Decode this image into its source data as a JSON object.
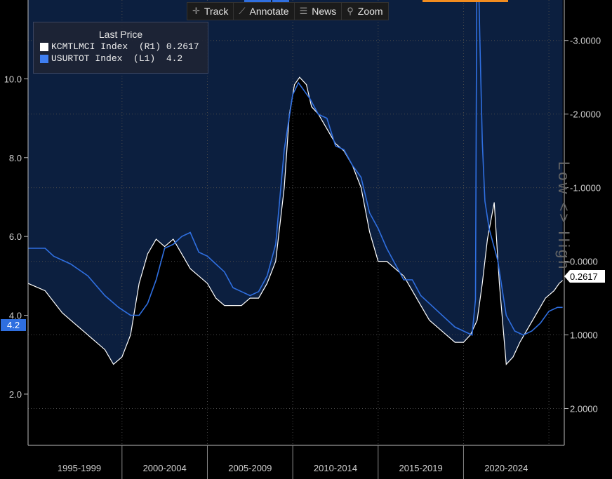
{
  "toolbar": {
    "track": "Track",
    "annotate": "Annotate",
    "news": "News",
    "zoom": "Zoom"
  },
  "legend": {
    "title": "Last Price",
    "items": [
      {
        "label": "KCMTLMCI Index  (R1) 0.2617",
        "color": "#ffffff"
      },
      {
        "label": "USURTOT Index  (L1)  4.2",
        "color": "#3f7ff2"
      }
    ]
  },
  "side_label": "Low <> High",
  "colors": {
    "background": "#000000",
    "shade": "#0c1f3f",
    "usurtot": "#2f6fe0",
    "kcmtlmci": "#ffffff"
  },
  "chart_data": {
    "type": "line",
    "x_tick_labels": [
      "1995-1999",
      "2000-2004",
      "2005-2009",
      "2010-2014",
      "2015-2019",
      "2020-2024"
    ],
    "xlim": [
      1994.0,
      2025.4
    ],
    "left_axis": {
      "ticks": [
        2.0,
        4.0,
        6.0,
        8.0,
        10.0
      ],
      "tick_labels": [
        "2.0",
        "4.0",
        "6.0",
        "8.0",
        "10.0"
      ],
      "ylim": [
        0.7,
        12.0
      ]
    },
    "right_axis": {
      "inverted": true,
      "ticks": [
        -3.0,
        -2.0,
        -1.0,
        0.0,
        1.0,
        2.0
      ],
      "tick_labels": [
        "-3.0000",
        "-2.0000",
        "-1.0000",
        "0.0000",
        "1.0000",
        "2.0000"
      ],
      "ylim": [
        -3.55,
        2.5
      ]
    },
    "last_values": {
      "left": "4.2",
      "right": "0.2617"
    },
    "series": [
      {
        "name": "USURTOT Index",
        "axis": "left",
        "x": [
          1994.0,
          1995.0,
          1995.5,
          1996.5,
          1997.5,
          1998.5,
          1999.3,
          2000.0,
          2000.5,
          2001.0,
          2001.5,
          2002.0,
          2002.5,
          2003.0,
          2003.5,
          2004.0,
          2004.5,
          2005.0,
          2005.5,
          2006.0,
          2006.5,
          2007.0,
          2007.5,
          2008.0,
          2008.5,
          2009.0,
          2009.5,
          2009.83,
          2010.0,
          2010.5,
          2011.0,
          2011.5,
          2012.0,
          2012.5,
          2013.0,
          2013.5,
          2014.0,
          2014.5,
          2015.0,
          2015.5,
          2016.0,
          2016.5,
          2017.0,
          2017.5,
          2018.0,
          2018.5,
          2019.0,
          2019.5,
          2020.0,
          2020.2,
          2020.3,
          2020.35,
          2020.45,
          2020.6,
          2020.75,
          2021.0,
          2021.5,
          2022.0,
          2022.5,
          2023.0,
          2023.5,
          2024.0,
          2024.5,
          2025.0,
          2025.3
        ],
        "y": [
          5.7,
          5.7,
          5.5,
          5.3,
          5.0,
          4.5,
          4.2,
          4.0,
          4.0,
          4.3,
          4.9,
          5.7,
          5.8,
          6.0,
          6.1,
          5.6,
          5.5,
          5.3,
          5.1,
          4.7,
          4.6,
          4.5,
          4.6,
          5.0,
          5.8,
          8.2,
          9.6,
          9.9,
          9.8,
          9.5,
          9.1,
          9.0,
          8.3,
          8.2,
          7.8,
          7.5,
          6.6,
          6.2,
          5.7,
          5.3,
          4.9,
          4.9,
          4.5,
          4.3,
          4.1,
          3.9,
          3.7,
          3.6,
          3.5,
          4.4,
          14.8,
          13.2,
          11.1,
          8.4,
          6.9,
          6.2,
          5.4,
          4.0,
          3.6,
          3.5,
          3.6,
          3.8,
          4.1,
          4.2,
          4.2
        ]
      },
      {
        "name": "KCMTLMCI Index",
        "axis": "right",
        "x": [
          1994.0,
          1995.0,
          1996.0,
          1996.5,
          1997.0,
          1997.5,
          1998.0,
          1998.5,
          1999.0,
          1999.5,
          2000.0,
          2000.5,
          2001.0,
          2001.5,
          2002.0,
          2002.5,
          2003.0,
          2003.5,
          2004.0,
          2004.5,
          2005.0,
          2005.5,
          2006.0,
          2006.5,
          2007.0,
          2007.5,
          2008.0,
          2008.5,
          2009.0,
          2009.3,
          2009.6,
          2009.9,
          2010.3,
          2010.6,
          2011.0,
          2011.5,
          2012.0,
          2012.5,
          2013.0,
          2013.5,
          2014.0,
          2014.5,
          2015.0,
          2015.5,
          2016.0,
          2016.5,
          2017.0,
          2017.5,
          2018.0,
          2018.5,
          2019.0,
          2019.5,
          2019.9,
          2020.3,
          2020.6,
          2020.9,
          2021.3,
          2021.6,
          2022.0,
          2022.4,
          2022.8,
          2023.3,
          2023.8,
          2024.3,
          2024.8,
          2025.1,
          2025.3
        ],
        "y": [
          0.3,
          0.4,
          0.7,
          0.8,
          0.9,
          1.0,
          1.1,
          1.2,
          1.4,
          1.3,
          1.0,
          0.3,
          -0.1,
          -0.3,
          -0.2,
          -0.3,
          -0.1,
          0.1,
          0.2,
          0.3,
          0.5,
          0.6,
          0.6,
          0.6,
          0.5,
          0.5,
          0.3,
          0.0,
          -1.0,
          -2.0,
          -2.4,
          -2.5,
          -2.4,
          -2.1,
          -2.0,
          -1.8,
          -1.6,
          -1.5,
          -1.3,
          -1.0,
          -0.4,
          0.0,
          0.0,
          0.1,
          0.2,
          0.4,
          0.6,
          0.8,
          0.9,
          1.0,
          1.1,
          1.1,
          1.0,
          0.8,
          0.3,
          -0.3,
          -0.8,
          0.3,
          1.4,
          1.3,
          1.1,
          0.9,
          0.7,
          0.5,
          0.4,
          0.3,
          0.26
        ]
      }
    ]
  }
}
